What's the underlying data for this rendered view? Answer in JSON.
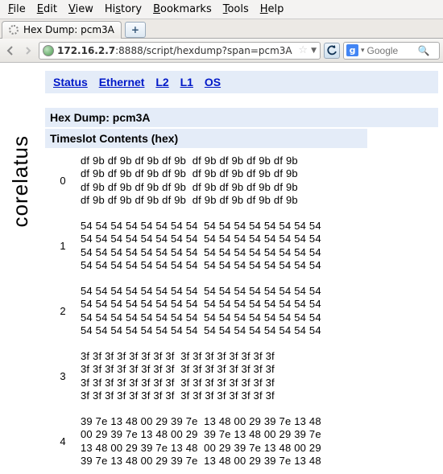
{
  "menubar": {
    "items": [
      {
        "hotkey": "F",
        "rest": "ile"
      },
      {
        "hotkey": "E",
        "rest": "dit"
      },
      {
        "hotkey": "V",
        "rest": "iew"
      },
      {
        "hotkey": "H",
        "rest": "istory",
        "pre": "H",
        "label": "History",
        "u_index": 0,
        "text": "History",
        "hk": "H",
        "tail": "istory",
        "full": "History",
        "underline": "H",
        "after": "istory"
      },
      {
        "hotkey": "B",
        "rest": "ookmarks"
      },
      {
        "hotkey": "T",
        "rest": "ools"
      },
      {
        "hotkey": "H",
        "rest": "elp",
        "prefix": "",
        "label": "Help"
      }
    ],
    "rendered": [
      "File",
      "Edit",
      "View",
      "History",
      "Bookmarks",
      "Tools",
      "Help"
    ],
    "underline_index": [
      0,
      0,
      0,
      0,
      0,
      0,
      0
    ]
  },
  "tab": {
    "title": "Hex Dump: pcm3A"
  },
  "newtab_glyph": "+",
  "nav": {
    "url": "172.16.2.7:8888/script/hexdump?span=pcm3A",
    "url_host": "172.16.2.7",
    "url_rest": ":8888/script/hexdump?span=pcm3A",
    "search_engine": "Google",
    "search_placeholder": "Google",
    "g_glyph": "g"
  },
  "links": [
    "Status",
    "Ethernet",
    "L2",
    "L1",
    "OS"
  ],
  "page_title": "Hex Dump: pcm3A",
  "table_header": "Timeslot Contents (hex)",
  "side_label": "corelatus",
  "rows": [
    {
      "slot": "0",
      "lines": [
        "df 9b df 9b df 9b df 9b  df 9b df 9b df 9b df 9b",
        "df 9b df 9b df 9b df 9b  df 9b df 9b df 9b df 9b",
        "df 9b df 9b df 9b df 9b  df 9b df 9b df 9b df 9b",
        "df 9b df 9b df 9b df 9b  df 9b df 9b df 9b df 9b"
      ]
    },
    {
      "slot": "1",
      "lines": [
        "54 54 54 54 54 54 54 54  54 54 54 54 54 54 54 54",
        "54 54 54 54 54 54 54 54  54 54 54 54 54 54 54 54",
        "54 54 54 54 54 54 54 54  54 54 54 54 54 54 54 54",
        "54 54 54 54 54 54 54 54  54 54 54 54 54 54 54 54"
      ]
    },
    {
      "slot": "2",
      "lines": [
        "54 54 54 54 54 54 54 54  54 54 54 54 54 54 54 54",
        "54 54 54 54 54 54 54 54  54 54 54 54 54 54 54 54",
        "54 54 54 54 54 54 54 54  54 54 54 54 54 54 54 54",
        "54 54 54 54 54 54 54 54  54 54 54 54 54 54 54 54"
      ]
    },
    {
      "slot": "3",
      "lines": [
        "3f 3f 3f 3f 3f 3f 3f 3f  3f 3f 3f 3f 3f 3f 3f 3f",
        "3f 3f 3f 3f 3f 3f 3f 3f  3f 3f 3f 3f 3f 3f 3f 3f",
        "3f 3f 3f 3f 3f 3f 3f 3f  3f 3f 3f 3f 3f 3f 3f 3f",
        "3f 3f 3f 3f 3f 3f 3f 3f  3f 3f 3f 3f 3f 3f 3f 3f"
      ]
    },
    {
      "slot": "4",
      "lines": [
        "39 7e 13 48 00 29 39 7e  13 48 00 29 39 7e 13 48",
        "00 29 39 7e 13 48 00 29  39 7e 13 48 00 29 39 7e",
        "13 48 00 29 39 7e 13 48  00 29 39 7e 13 48 00 29",
        "39 7e 13 48 00 29 39 7e  13 48 00 29 39 7e 13 48"
      ]
    }
  ],
  "colors": {
    "linkbar_bg": "#e4ecf8",
    "link_color": "#0018c8"
  }
}
